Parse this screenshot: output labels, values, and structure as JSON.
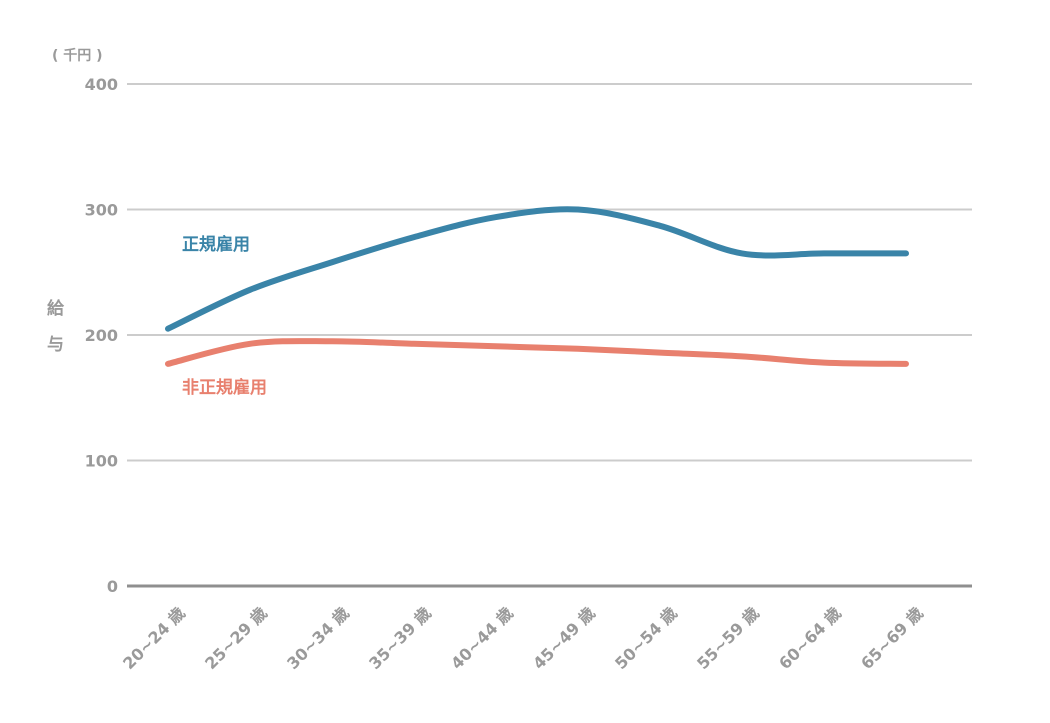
{
  "chart_data": {
    "type": "line",
    "unit_label": "( 千円 )",
    "ylabel_chars": [
      "給",
      "与"
    ],
    "ylim": [
      0,
      400
    ],
    "yticks": [
      "0",
      "100",
      "200",
      "300",
      "400"
    ],
    "grid": true,
    "categories": [
      "20~24 歳",
      "25~29 歳",
      "30~34 歳",
      "35~39 歳",
      "40~44 歳",
      "45~49 歳",
      "50~54 歳",
      "55~59 歳",
      "60~64 歳",
      "65~69 歳"
    ],
    "series": [
      {
        "name": "正規雇用",
        "color": "#3a84a8",
        "values": [
          205,
          236,
          258,
          278,
          294,
          300,
          287,
          265,
          265,
          265
        ]
      },
      {
        "name": "非正規雇用",
        "color": "#e8806e",
        "values": [
          177,
          193,
          195,
          193,
          191,
          189,
          186,
          183,
          178,
          177
        ]
      }
    ]
  }
}
